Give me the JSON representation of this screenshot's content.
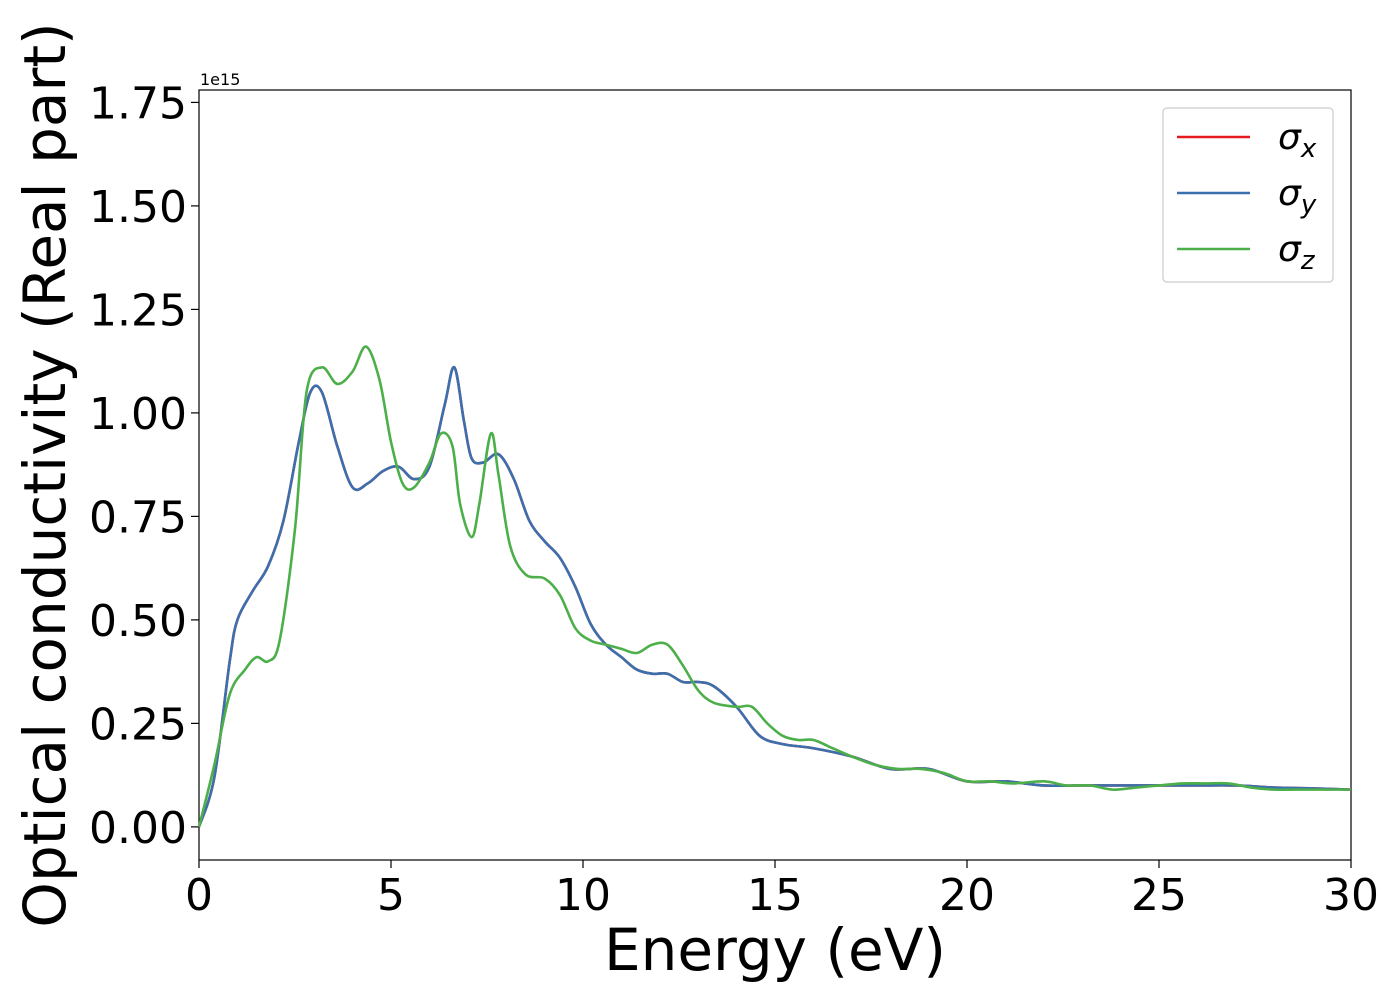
{
  "chart_data": {
    "type": "line",
    "xlabel": "Energy (eV)",
    "ylabel": "Optical conductivity (Real part)",
    "y_offset_text": "1e15",
    "xlim": [
      0,
      30
    ],
    "ylim": [
      -0.08,
      1.78
    ],
    "x_ticks": [
      0,
      5,
      10,
      15,
      20,
      25,
      30
    ],
    "x_tick_labels": [
      "0",
      "5",
      "10",
      "15",
      "20",
      "25",
      "30"
    ],
    "y_ticks": [
      0.0,
      0.25,
      0.5,
      0.75,
      1.0,
      1.25,
      1.5,
      1.75
    ],
    "y_tick_labels": [
      "0.00",
      "0.25",
      "0.50",
      "0.75",
      "1.00",
      "1.25",
      "1.50",
      "1.75"
    ],
    "grid": false,
    "legend_position": "top-right",
    "series": [
      {
        "name": "σ",
        "subscript": "x",
        "color": "#e41a1c",
        "x": [
          0,
          0.4,
          0.8,
          1.0,
          1.4,
          1.8,
          2.2,
          2.6,
          2.9,
          3.2,
          3.6,
          4.0,
          4.4,
          4.8,
          5.2,
          5.6,
          6.0,
          6.4,
          6.65,
          6.9,
          7.1,
          7.4,
          7.8,
          8.2,
          8.6,
          9.0,
          9.4,
          9.8,
          10.2,
          10.6,
          11.0,
          11.4,
          11.8,
          12.2,
          12.6,
          13.0,
          13.4,
          14.0,
          14.6,
          15.2,
          16.0,
          17.0,
          18.0,
          19.0,
          20.0,
          21.0,
          22.0,
          23.0,
          24.0,
          25.0,
          26.0,
          27.0,
          28.0,
          29.0,
          30.0
        ],
        "values": [
          0.0,
          0.12,
          0.4,
          0.5,
          0.57,
          0.63,
          0.74,
          0.93,
          1.05,
          1.05,
          0.92,
          0.82,
          0.83,
          0.86,
          0.87,
          0.84,
          0.87,
          1.02,
          1.11,
          0.98,
          0.89,
          0.88,
          0.9,
          0.84,
          0.74,
          0.69,
          0.65,
          0.58,
          0.49,
          0.44,
          0.41,
          0.38,
          0.37,
          0.37,
          0.35,
          0.35,
          0.34,
          0.29,
          0.22,
          0.2,
          0.19,
          0.17,
          0.14,
          0.14,
          0.11,
          0.11,
          0.1,
          0.1,
          0.1,
          0.1,
          0.1,
          0.1,
          0.095,
          0.093,
          0.09
        ]
      },
      {
        "name": "σ",
        "subscript": "y",
        "color": "#3a70ad",
        "x": [
          0,
          0.4,
          0.8,
          1.0,
          1.4,
          1.8,
          2.2,
          2.6,
          2.9,
          3.2,
          3.6,
          4.0,
          4.4,
          4.8,
          5.2,
          5.6,
          6.0,
          6.4,
          6.65,
          6.9,
          7.1,
          7.4,
          7.8,
          8.2,
          8.6,
          9.0,
          9.4,
          9.8,
          10.2,
          10.6,
          11.0,
          11.4,
          11.8,
          12.2,
          12.6,
          13.0,
          13.4,
          14.0,
          14.6,
          15.2,
          16.0,
          17.0,
          18.0,
          19.0,
          20.0,
          21.0,
          22.0,
          23.0,
          24.0,
          25.0,
          26.0,
          27.0,
          28.0,
          29.0,
          30.0
        ],
        "values": [
          0.0,
          0.12,
          0.4,
          0.5,
          0.57,
          0.63,
          0.74,
          0.93,
          1.05,
          1.05,
          0.92,
          0.82,
          0.83,
          0.86,
          0.87,
          0.84,
          0.87,
          1.02,
          1.11,
          0.98,
          0.89,
          0.88,
          0.9,
          0.84,
          0.74,
          0.69,
          0.65,
          0.58,
          0.49,
          0.44,
          0.41,
          0.38,
          0.37,
          0.37,
          0.35,
          0.35,
          0.34,
          0.29,
          0.22,
          0.2,
          0.19,
          0.17,
          0.14,
          0.14,
          0.11,
          0.11,
          0.1,
          0.1,
          0.1,
          0.1,
          0.1,
          0.1,
          0.095,
          0.093,
          0.09
        ]
      },
      {
        "name": "σ",
        "subscript": "z",
        "color": "#4daf4a",
        "x": [
          0,
          0.4,
          0.8,
          1.2,
          1.5,
          1.8,
          2.1,
          2.5,
          2.8,
          3.2,
          3.6,
          4.0,
          4.35,
          4.7,
          5.0,
          5.3,
          5.6,
          6.0,
          6.3,
          6.6,
          6.8,
          7.1,
          7.3,
          7.6,
          7.8,
          8.1,
          8.5,
          9.0,
          9.4,
          9.8,
          10.2,
          10.6,
          11.0,
          11.4,
          11.8,
          12.2,
          12.6,
          13.0,
          13.4,
          14.0,
          14.4,
          14.8,
          15.2,
          15.6,
          16.0,
          16.5,
          17.0,
          17.6,
          18.2,
          18.8,
          19.4,
          20.0,
          20.6,
          21.2,
          22.0,
          22.6,
          23.2,
          23.8,
          24.4,
          25.0,
          25.6,
          26.2,
          26.8,
          27.4,
          28.0,
          28.6,
          29.2,
          30.0
        ],
        "values": [
          0.0,
          0.15,
          0.32,
          0.38,
          0.41,
          0.4,
          0.45,
          0.72,
          1.05,
          1.11,
          1.07,
          1.1,
          1.16,
          1.08,
          0.93,
          0.83,
          0.82,
          0.88,
          0.95,
          0.92,
          0.78,
          0.7,
          0.78,
          0.95,
          0.85,
          0.68,
          0.61,
          0.6,
          0.56,
          0.48,
          0.45,
          0.44,
          0.43,
          0.42,
          0.44,
          0.44,
          0.39,
          0.33,
          0.3,
          0.29,
          0.29,
          0.25,
          0.22,
          0.21,
          0.21,
          0.19,
          0.17,
          0.15,
          0.14,
          0.14,
          0.13,
          0.11,
          0.11,
          0.105,
          0.11,
          0.1,
          0.1,
          0.09,
          0.095,
          0.1,
          0.105,
          0.105,
          0.105,
          0.095,
          0.09,
          0.09,
          0.09,
          0.09
        ]
      }
    ]
  }
}
